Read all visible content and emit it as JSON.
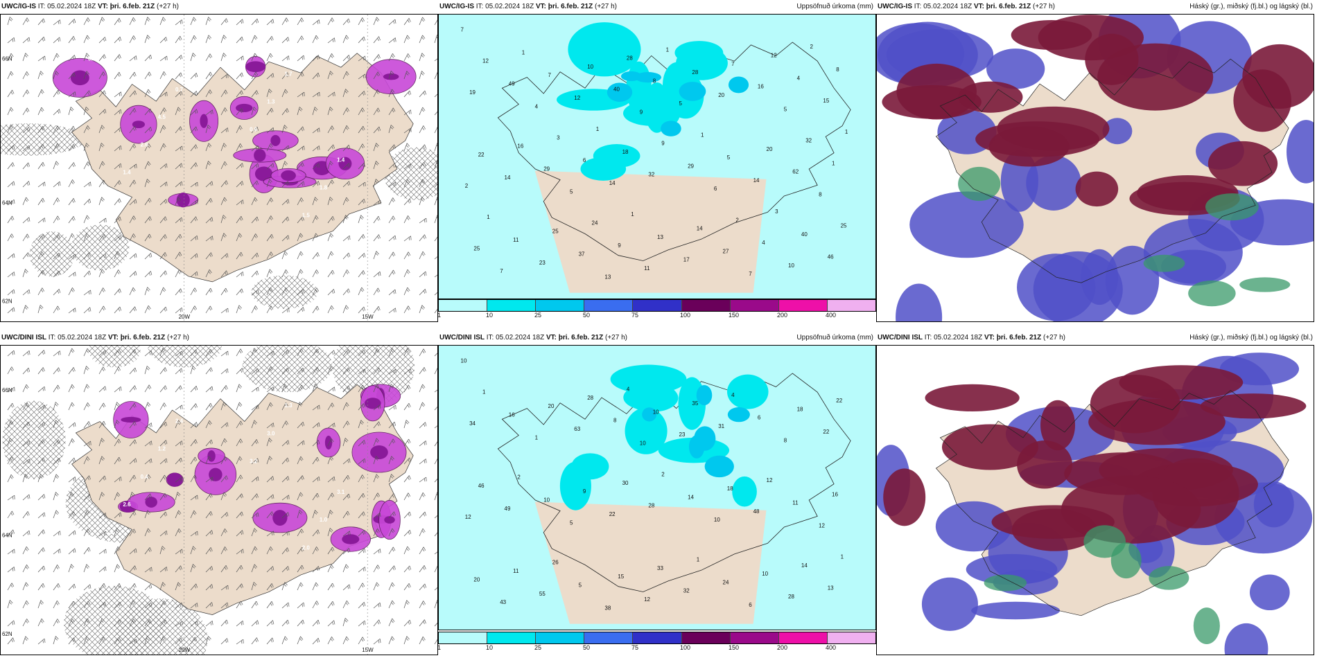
{
  "rows": [
    {
      "model": "UWC/IG-IS",
      "it_label": "IT: 05.02.2024 18Z",
      "vt_prefix": "VT:",
      "vt_value": "þri. 6.feb. 21Z",
      "lead": "(+27 h)",
      "precip_title": "Uppsöfnuð úrkoma (mm)",
      "cloud_title": "Háský (gr.), miðský (fj.bl.) og lágský (bl.)",
      "lon_labels": [
        "20W",
        "15W"
      ],
      "lat_labels": [
        "66N",
        "64N",
        "62N"
      ],
      "precip_values": [
        "7",
        "9",
        "8",
        "13",
        "5",
        "5",
        "7",
        "4",
        "6",
        "7",
        "5",
        "2",
        "11",
        "15",
        "14",
        "10",
        "12",
        "14",
        "23",
        "20",
        "14",
        "17",
        "19",
        "32",
        "46",
        "40",
        "62",
        "37",
        "16",
        "29",
        "27",
        "49",
        "29",
        "25",
        "8",
        "1",
        "9",
        "4",
        "6",
        "4",
        "7",
        "5",
        "11",
        "28",
        "22",
        "13",
        "8",
        "18",
        "40",
        "10",
        "20",
        "25",
        "7",
        "16",
        "14",
        "12",
        "9",
        "25",
        "28",
        "32",
        "24",
        "12",
        "3",
        "2",
        "1",
        "1",
        "1",
        "1",
        "1",
        "1",
        "2",
        "1",
        "3"
      ],
      "mslp_values": [
        "0.4",
        "0.6",
        "1.0",
        "1.3",
        "1.4",
        "1.7",
        "2.6",
        "1.5",
        "4.5",
        "1.8",
        "0.7",
        "1.4",
        "0.6"
      ]
    },
    {
      "model": "UWC/DINI ISL",
      "it_label": "IT: 05.02.2024 18Z",
      "vt_prefix": "VT:",
      "vt_value": "þri. 6.feb. 21Z",
      "lead": "(+27 h)",
      "precip_title": "Uppsöfnuð úrkoma (mm)",
      "cloud_title": "Háský (gr.), miðský (fj.bl.) og lágský (bl.)",
      "lon_labels": [
        "20W",
        "15W"
      ],
      "lat_labels": [
        "66N",
        "64N",
        "62N"
      ],
      "precip_values": [
        "10",
        "10",
        "12",
        "38",
        "8",
        "5",
        "6",
        "1",
        "10",
        "43",
        "23",
        "12",
        "12",
        "22",
        "22",
        "28",
        "63",
        "48",
        "55",
        "31",
        "49",
        "32",
        "34",
        "28",
        "13",
        "8",
        "11",
        "5",
        "6",
        "10",
        "24",
        "16",
        "14",
        "20",
        "10",
        "16",
        "15",
        "18",
        "9",
        "10",
        "20",
        "18",
        "11",
        "35",
        "46",
        "33",
        "22",
        "30",
        "14",
        "28",
        "12",
        "26",
        "4",
        "2",
        "1",
        "1",
        "2",
        "1",
        "4"
      ],
      "mslp_values": [
        "2.0",
        "3.2",
        "1.0",
        "3.0",
        "2.6",
        "1.3",
        "0.4",
        "2.0",
        "1.2",
        "1.0",
        "2.4",
        "3.1",
        "1.9"
      ]
    }
  ],
  "colorbar": {
    "labels": [
      "1",
      "10",
      "25",
      "50",
      "75",
      "100",
      "150",
      "200",
      "400"
    ],
    "colors": [
      "#b8fbfb",
      "#00e8ee",
      "#00c8ee",
      "#3a6df0",
      "#3030c8",
      "#6a005a",
      "#9a0a8a",
      "#ee10a8",
      "#f0b0f0"
    ]
  },
  "colors": {
    "land": "#ecdccb",
    "precip_light": "#b8fbfb",
    "precip_mid": "#00e8ee",
    "precip_deep": "#00c8ee",
    "wind_purple": "#c040d0",
    "cloud_high": "#7a1a3a",
    "cloud_mid": "#5050c8",
    "cloud_low": "#3a9a6a"
  }
}
